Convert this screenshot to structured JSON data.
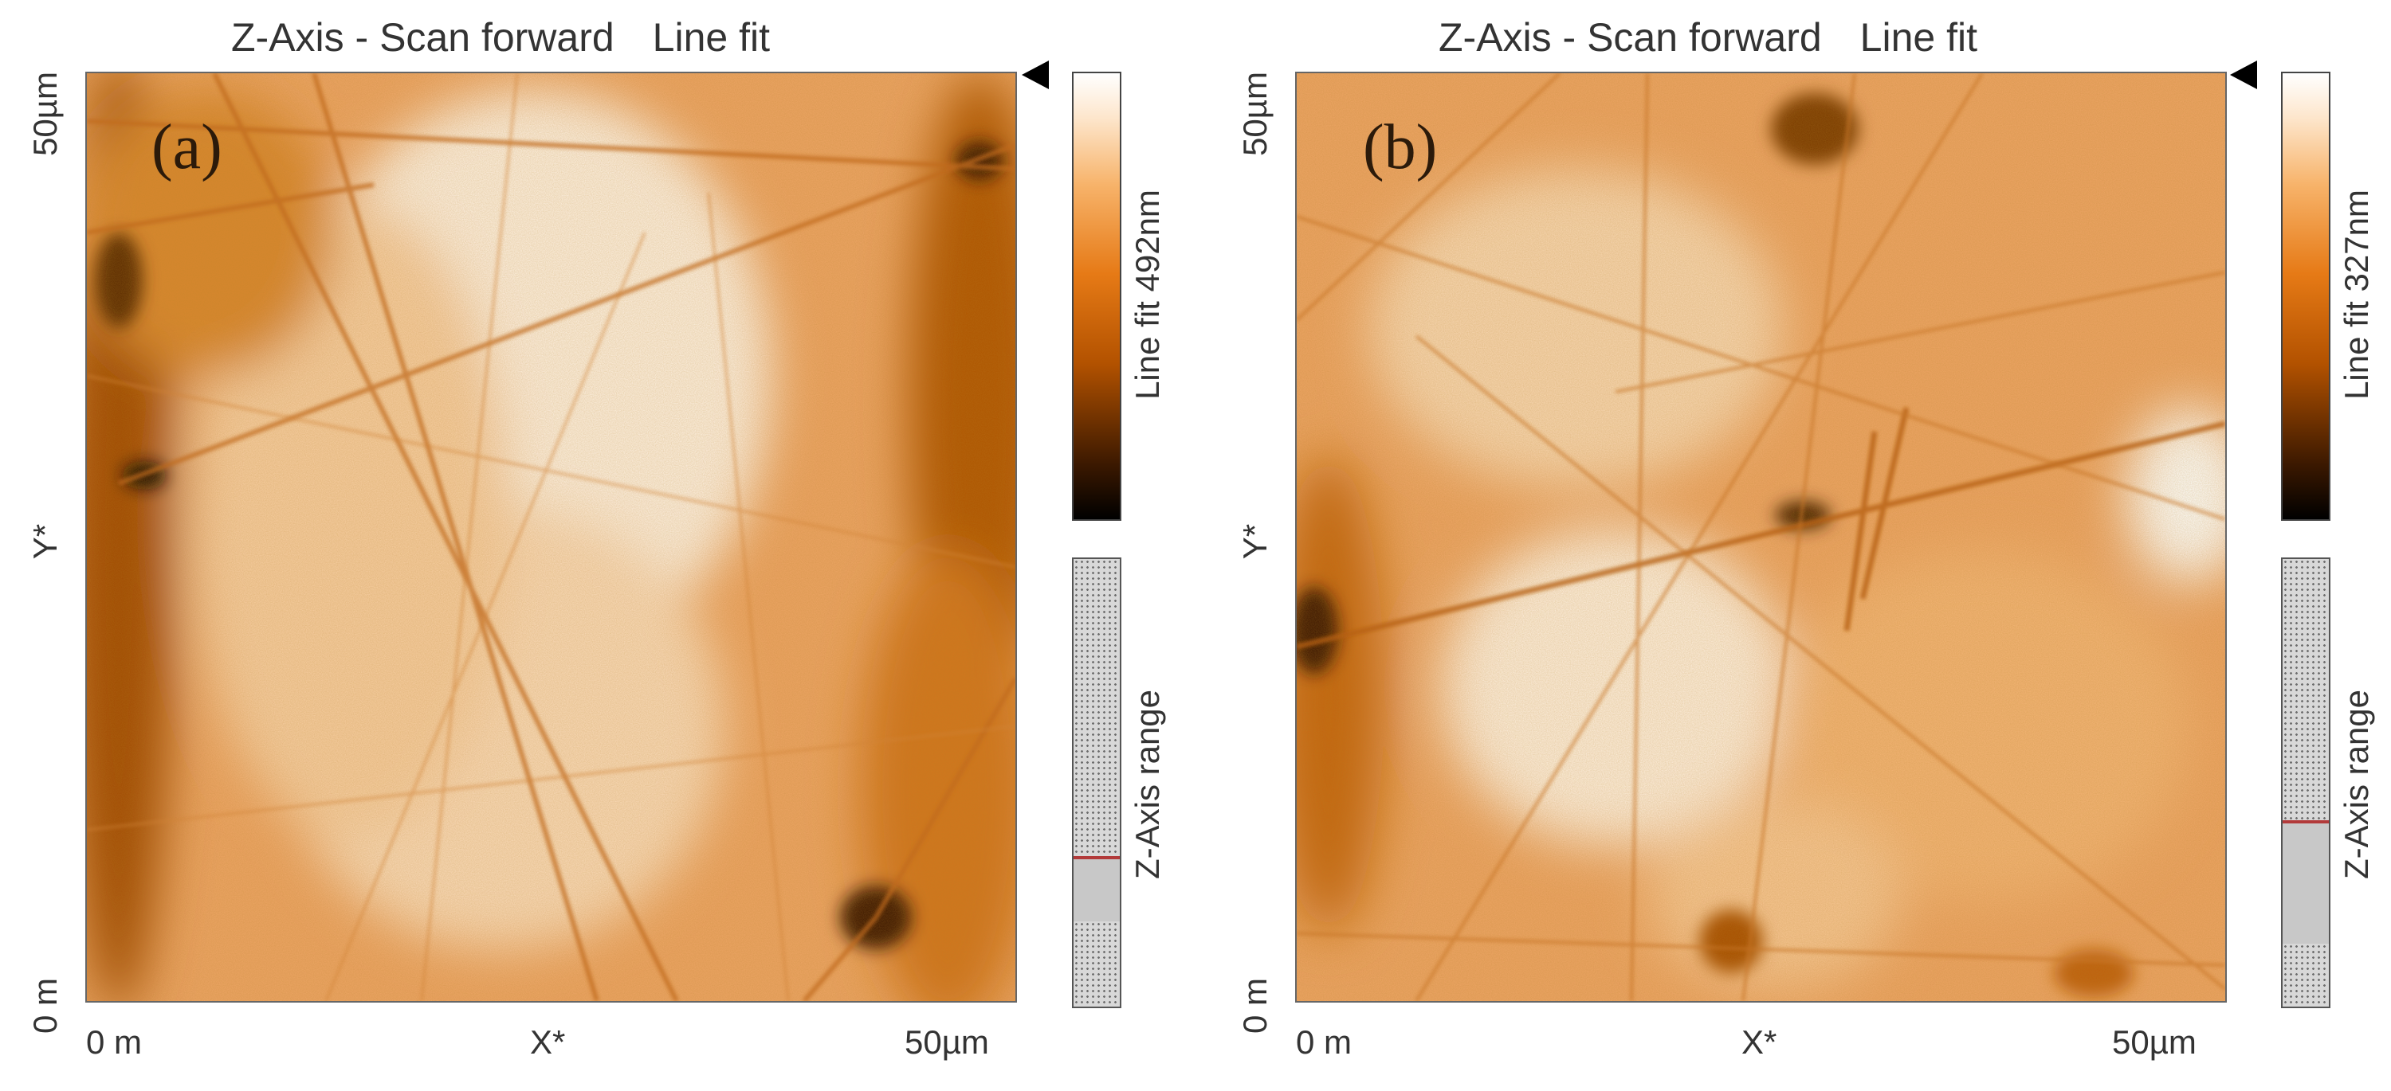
{
  "colors": {
    "accent": "#e07d22",
    "range_line": "#b23a3a",
    "range_fill": "#c8c8c8"
  },
  "panels": [
    {
      "id": "a",
      "title_main": "Z-Axis - Scan forward",
      "title_mode": "Line fit",
      "label": "(a)",
      "x_axis": {
        "min": "0 m",
        "label": "X*",
        "max": "50µm"
      },
      "y_axis": {
        "min": "0 m",
        "label": "Y*",
        "max": "50µm"
      },
      "colorbar_label": "Line fit 492nm",
      "range_label": "Z-Axis range",
      "z_range_fraction": [
        0.19,
        0.33
      ]
    },
    {
      "id": "b",
      "title_main": "Z-Axis - Scan forward",
      "title_mode": "Line fit",
      "label": "(b)",
      "x_axis": {
        "min": "0 m",
        "label": "X*",
        "max": "50µm"
      },
      "y_axis": {
        "min": "0 m",
        "label": "Y*",
        "max": "50µm"
      },
      "colorbar_label": "Line fit 327nm",
      "range_label": "Z-Axis range",
      "z_range_fraction": [
        0.14,
        0.41
      ]
    }
  ]
}
